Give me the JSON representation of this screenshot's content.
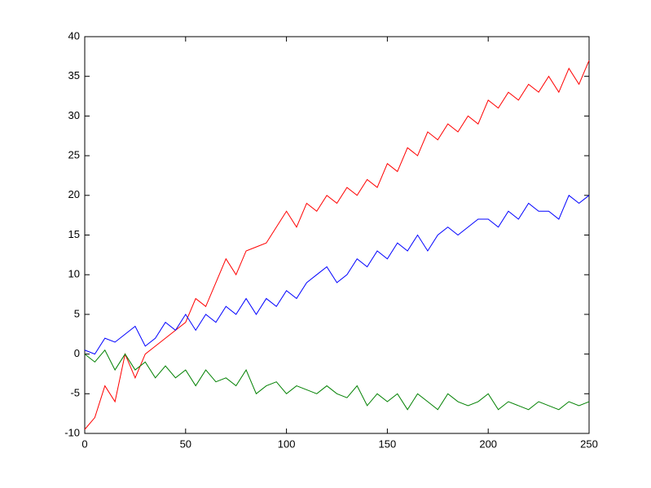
{
  "chart_data": {
    "type": "line",
    "x": [
      0,
      5,
      10,
      15,
      20,
      25,
      30,
      35,
      40,
      45,
      50,
      55,
      60,
      65,
      70,
      75,
      80,
      85,
      90,
      95,
      100,
      105,
      110,
      115,
      120,
      125,
      130,
      135,
      140,
      145,
      150,
      155,
      160,
      165,
      170,
      175,
      180,
      185,
      190,
      195,
      200,
      205,
      210,
      215,
      220,
      225,
      230,
      235,
      240,
      245,
      250
    ],
    "series": [
      {
        "color": "#ff0000",
        "values": [
          -9.5,
          -8,
          -4,
          -6,
          0,
          -3,
          0,
          1,
          2,
          3,
          4,
          7,
          6,
          9,
          12,
          10,
          13,
          13.5,
          14,
          16,
          18,
          16,
          19,
          18,
          20,
          19,
          21,
          20,
          22,
          21,
          24,
          23,
          26,
          25,
          28,
          27,
          29,
          28,
          30,
          29,
          32,
          31,
          33,
          32,
          34,
          33,
          35,
          33,
          36,
          34,
          37
        ]
      },
      {
        "color": "#0000ff",
        "values": [
          0.5,
          0,
          2,
          1.5,
          2.5,
          3.5,
          1,
          2,
          4,
          3,
          5,
          3,
          5,
          4,
          6,
          5,
          7,
          5,
          7,
          6,
          8,
          7,
          9,
          10,
          11,
          9,
          10,
          12,
          11,
          13,
          12,
          14,
          13,
          15,
          13,
          15,
          16,
          15,
          16,
          17,
          17,
          16,
          18,
          17,
          19,
          18,
          18,
          17,
          20,
          19,
          20
        ]
      },
      {
        "color": "#008000",
        "values": [
          0,
          -1,
          0.5,
          -2,
          0,
          -2,
          -1,
          -3,
          -1.5,
          -3,
          -2,
          -4,
          -2,
          -3.5,
          -3,
          -4,
          -2,
          -5,
          -4,
          -3.5,
          -5,
          -4,
          -4.5,
          -5,
          -4,
          -5,
          -5.5,
          -4,
          -6.5,
          -5,
          -6,
          -5,
          -7,
          -5,
          -6,
          -7,
          -5,
          -6,
          -6.5,
          -6,
          -5,
          -7,
          -6,
          -6.5,
          -7,
          -6,
          -6.5,
          -7,
          -6,
          -6.5,
          -6
        ]
      }
    ],
    "xlim": [
      0,
      250
    ],
    "xticks": [
      0,
      50,
      100,
      150,
      200,
      250
    ],
    "ylim": [
      -10,
      40
    ],
    "yticks": [
      -10,
      -5,
      0,
      5,
      10,
      15,
      20,
      25,
      30,
      35,
      40
    ]
  }
}
